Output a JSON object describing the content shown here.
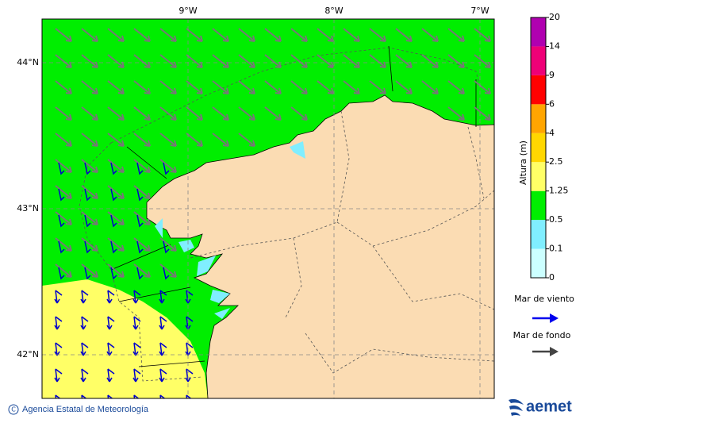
{
  "map": {
    "lon_labels": [
      "9°W",
      "8°W",
      "7°W"
    ],
    "lat_labels": [
      "44°N",
      "43°N",
      "42°N"
    ]
  },
  "legend": {
    "title": "Altura (m)",
    "levels": [
      0,
      0.1,
      0.5,
      1.25,
      2.5,
      4,
      6,
      9,
      14,
      20
    ],
    "colors": [
      "#ccffff",
      "#80eeff",
      "#00ee00",
      "#ffff66",
      "#ffd700",
      "#ffa500",
      "#ff0000",
      "#ee0077",
      "#b000b0"
    ]
  },
  "arrows": {
    "wind": "Mar de viento",
    "swell": "Mar de fondo"
  },
  "footer": {
    "credit": "Agencia Estatal de Meteorología",
    "logo": "aemet"
  }
}
